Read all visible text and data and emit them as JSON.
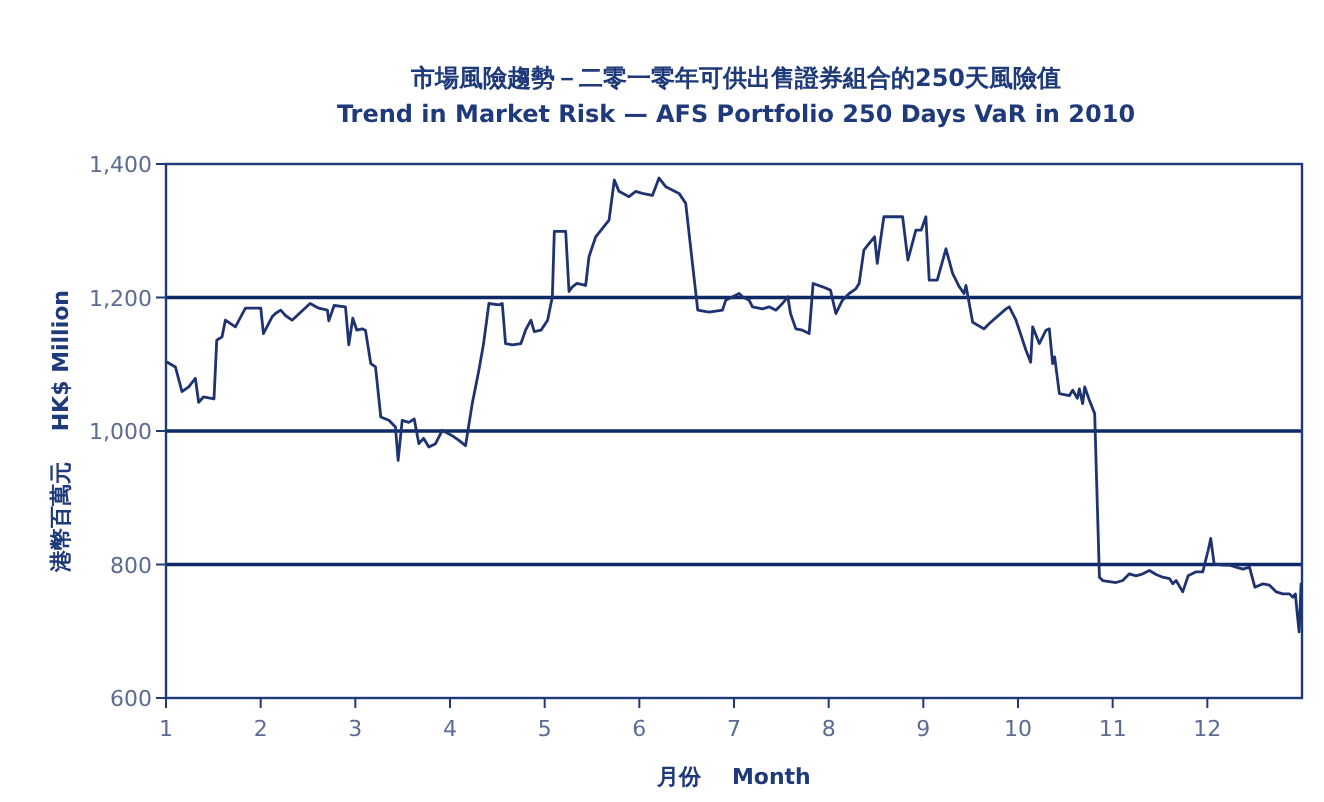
{
  "chart_data": {
    "type": "line",
    "title": "市場風險趨勢－二零一零年可供出售證券組合的250天風險值",
    "subtitle": "Trend in Market Risk — AFS Portfolio 250 Days VaR in 2010",
    "xlabel": "月份    Month",
    "ylabel": "港幣百萬元    HK$ Million",
    "xlim": [
      1,
      13
    ],
    "xticks": [
      1,
      2,
      3,
      4,
      5,
      6,
      7,
      8,
      9,
      10,
      11,
      12
    ],
    "ylim": [
      600,
      1400
    ],
    "yticks": [
      600,
      800,
      {
        "value": 1000,
        "label": "1,000"
      },
      {
        "value": 1200,
        "label": "1,200"
      },
      {
        "value": 1400,
        "label": "1,400"
      }
    ],
    "grid": "y",
    "marker": "none",
    "line_style": "solid",
    "series": [
      {
        "color": "#1f3370",
        "x": [
          1.014,
          1.099,
          1.169,
          1.24,
          1.31,
          1.345,
          1.395,
          1.507,
          1.536,
          1.592,
          1.627,
          1.733,
          1.839,
          2.001,
          2.029,
          2.121,
          2.156,
          2.212,
          2.261,
          2.332,
          2.522,
          2.614,
          2.705,
          2.72,
          2.776,
          2.896,
          2.931,
          2.973,
          3.016,
          3.072,
          3.107,
          3.163,
          3.213,
          3.269,
          3.354,
          3.424,
          3.452,
          3.495,
          3.565,
          3.622,
          3.671,
          3.72,
          3.777,
          3.847,
          3.918,
          4.023,
          4.094,
          4.164,
          4.235,
          4.305,
          4.355,
          4.411,
          4.517,
          4.552,
          4.587,
          4.658,
          4.749,
          4.798,
          4.855,
          4.89,
          4.961,
          5.031,
          5.081,
          5.102,
          5.222,
          5.257,
          5.292,
          5.341,
          5.433,
          5.468,
          5.539,
          5.68,
          5.736,
          5.785,
          5.891,
          5.962,
          6.032,
          6.138,
          6.208,
          6.279,
          6.42,
          6.49,
          6.561,
          6.617,
          6.737,
          6.878,
          6.913,
          7.054,
          7.089,
          7.16,
          7.195,
          7.301,
          7.371,
          7.442,
          7.512,
          7.568,
          7.597,
          7.653,
          7.723,
          7.794,
          7.836,
          7.935,
          8.019,
          8.076,
          8.146,
          8.217,
          8.287,
          8.322,
          8.372,
          8.428,
          8.485,
          8.513,
          8.583,
          8.781,
          8.837,
          8.921,
          8.978,
          9.027,
          9.062,
          9.147,
          9.239,
          9.309,
          9.38,
          9.429,
          9.45,
          9.521,
          9.64,
          9.697,
          9.873,
          9.908,
          9.979,
          10.084,
          10.134,
          10.155,
          10.225,
          10.296,
          10.331,
          10.366,
          10.387,
          10.437,
          10.542,
          10.578,
          10.627,
          10.648,
          10.683,
          10.705,
          10.754,
          10.81,
          10.86,
          10.895,
          11.036,
          11.106,
          11.177,
          11.247,
          11.318,
          11.388,
          11.459,
          11.529,
          11.6,
          11.635,
          11.67,
          11.74,
          11.797,
          11.881,
          11.952,
          12.008,
          12.036,
          12.072,
          12.163,
          12.234,
          12.304,
          12.375,
          12.445,
          12.502,
          12.586,
          12.657,
          12.727,
          12.798,
          12.868,
          12.903,
          12.93,
          12.95,
          12.97,
          12.99
        ],
        "values": [
          1103,
          1096,
          1059,
          1066,
          1079,
          1043,
          1051,
          1048,
          1136,
          1141,
          1166,
          1156,
          1184,
          1184,
          1146,
          1171,
          1176,
          1181,
          1173,
          1166,
          1191,
          1184,
          1181,
          1165,
          1188,
          1186,
          1129,
          1169,
          1151,
          1153,
          1151,
          1101,
          1096,
          1021,
          1016,
          1006,
          956,
          1016,
          1013,
          1018,
          981,
          989,
          976,
          981,
          1001,
          993,
          986,
          978,
          1041,
          1091,
          1131,
          1191,
          1189,
          1191,
          1131,
          1129,
          1131,
          1151,
          1166,
          1149,
          1151,
          1166,
          1201,
          1299,
          1299,
          1209,
          1216,
          1221,
          1218,
          1261,
          1291,
          1316,
          1376,
          1359,
          1351,
          1359,
          1356,
          1353,
          1379,
          1366,
          1356,
          1341,
          1251,
          1181,
          1178,
          1181,
          1196,
          1206,
          1201,
          1196,
          1186,
          1183,
          1186,
          1181,
          1191,
          1201,
          1176,
          1153,
          1151,
          1146,
          1221,
          1216,
          1211,
          1176,
          1196,
          1206,
          1213,
          1221,
          1271,
          1281,
          1291,
          1251,
          1321,
          1321,
          1256,
          1301,
          1301,
          1321,
          1226,
          1226,
          1273,
          1236,
          1216,
          1206,
          1218,
          1163,
          1153,
          1161,
          1183,
          1186,
          1166,
          1121,
          1103,
          1156,
          1131,
          1151,
          1153,
          1101,
          1111,
          1056,
          1053,
          1061,
          1049,
          1063,
          1041,
          1066,
          1046,
          1026,
          781,
          776,
          773,
          776,
          786,
          783,
          786,
          791,
          785,
          781,
          779,
          771,
          776,
          759,
          783,
          789,
          789,
          821,
          839,
          801,
          799,
          799,
          796,
          793,
          796,
          766,
          771,
          769,
          759,
          756,
          756,
          751,
          756,
          726,
          699,
          771
        ]
      }
    ]
  }
}
